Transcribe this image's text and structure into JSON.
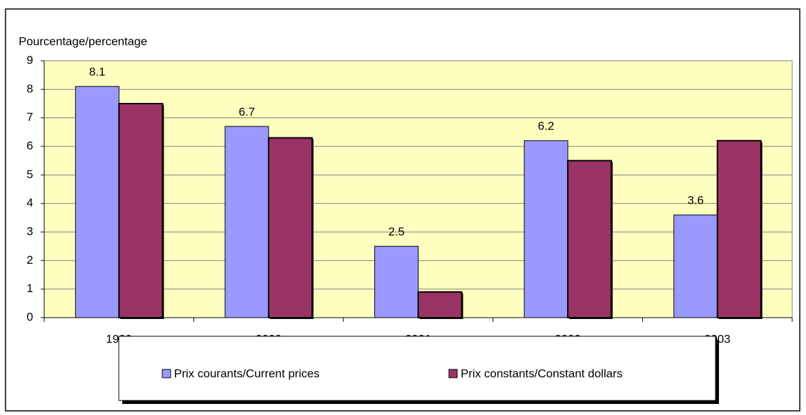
{
  "chart_data": {
    "type": "bar",
    "y_axis_title": "Pourcentage/percentage",
    "categories": [
      "1999",
      "2000",
      "2001",
      "2002",
      "2003"
    ],
    "series": [
      {
        "name": "Prix courants/Current prices",
        "color": "#9999ff",
        "values": [
          8.1,
          6.7,
          2.5,
          6.2,
          3.6
        ],
        "data_labels": true
      },
      {
        "name": "Prix constants/Constant dollars",
        "color": "#993366",
        "values": [
          7.5,
          6.3,
          0.9,
          5.5,
          6.2
        ],
        "data_labels": false
      }
    ],
    "ylim": [
      0,
      9
    ],
    "yticks": [
      0,
      1,
      2,
      3,
      4,
      5,
      6,
      7,
      8,
      9
    ],
    "grid": true,
    "plot_background": "#ffffc0",
    "legend": "bottom"
  }
}
